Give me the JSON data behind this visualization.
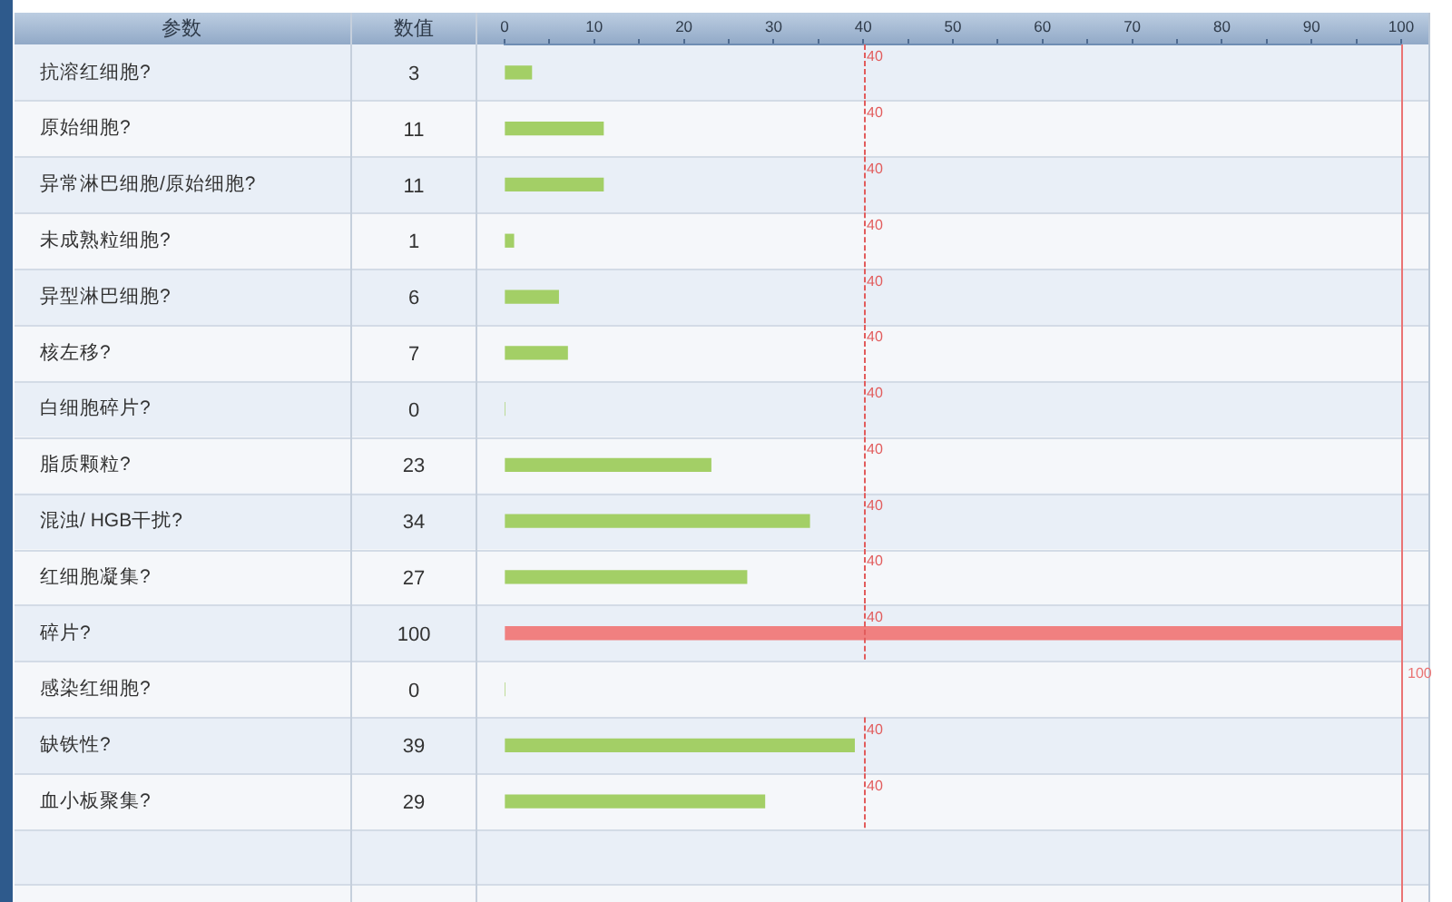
{
  "chart_data": {
    "type": "bar",
    "orientation": "horizontal",
    "ylabel": "参数",
    "xlabel": "数值",
    "categories": [
      "抗溶红细胞?",
      "原始细胞?",
      "异常淋巴细胞/原始细胞?",
      "未成熟粒细胞?",
      "异型淋巴细胞?",
      "核左移?",
      "白细胞碎片?",
      "脂质颗粒?",
      "混浊/ HGB干扰?",
      "红细胞凝集?",
      "碎片?",
      "感染红细胞?",
      "缺铁性?",
      "血小板聚集?"
    ],
    "series": [
      {
        "axis": "x2",
        "values": [
          3,
          11,
          11,
          1,
          6,
          7,
          0,
          23,
          34,
          27,
          100,
          0,
          39,
          29
        ],
        "colors": [
          "#a3cf66",
          "#a3cf66",
          "#a3cf66",
          "#a3cf66",
          "#a3cf66",
          "#a3cf66",
          "#a3cf66",
          "#a3cf66",
          "#a3cf66",
          "#a3cf66",
          "#f08080",
          "#a3cf66",
          "#a3cf66",
          "#a3cf66"
        ]
      }
    ],
    "x2lim": [
      0,
      100
    ],
    "x2ticks": [
      0,
      {
        "value": 5,
        "label": null
      },
      10,
      {
        "value": 15,
        "label": null
      },
      20,
      {
        "value": 25,
        "label": null
      },
      30,
      {
        "value": 35,
        "label": null
      },
      40,
      {
        "value": 45,
        "label": null
      },
      50,
      {
        "value": 55,
        "label": null
      },
      60,
      {
        "value": 65,
        "label": null
      },
      70,
      {
        "value": 75,
        "label": null
      },
      80,
      {
        "value": 85,
        "label": null
      },
      90,
      {
        "value": 95,
        "label": null
      },
      100
    ],
    "ref_lines": [
      {
        "axis": "x2",
        "value": 40,
        "label": "40",
        "color": "#e25c5c",
        "line_style": "dashed"
      },
      {
        "axis": "x2",
        "value": 100,
        "label": "100",
        "color": "#ea7474",
        "line_style": "solid"
      }
    ],
    "data_labels": true,
    "grid": "y",
    "legend": false
  }
}
